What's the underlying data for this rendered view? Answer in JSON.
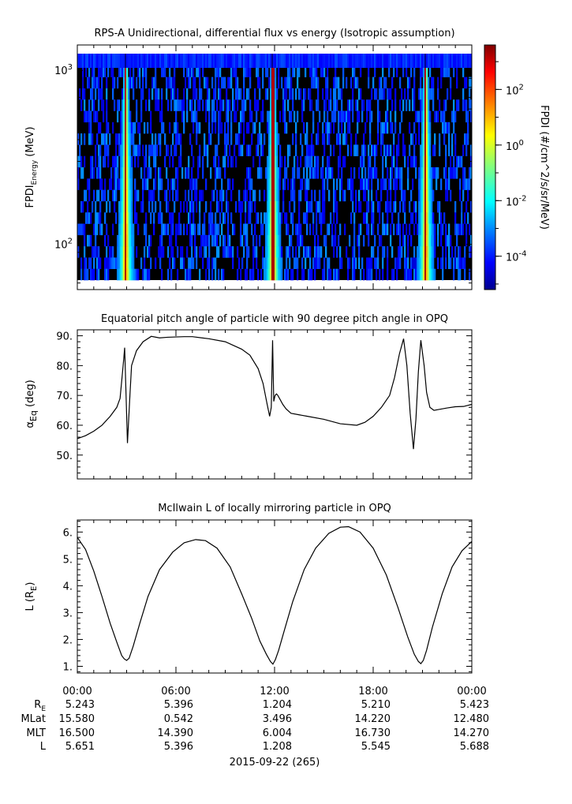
{
  "chart_data": [
    {
      "type": "heatmap",
      "title": "RPS-A Unidirectional, differential flux vs energy (Isotropic assumption)",
      "ylabel_main": "FPDI",
      "ylabel_sub": "Energy",
      "ylabel_unit": " (MeV)",
      "yscale": "log",
      "ylim": [
        55,
        1400
      ],
      "y_ticks": [
        {
          "value": 100,
          "base": "10",
          "exp": "2"
        },
        {
          "value": 1000,
          "base": "10",
          "exp": "3"
        }
      ],
      "xlim_hours": [
        0,
        24
      ],
      "colorbar": {
        "label": "FPDI (#/cm^2/s/sr/MeV)",
        "scale": "log",
        "range_exp": [
          -5.2,
          3.6
        ],
        "ticks": [
          {
            "exp": -4,
            "label": "-4"
          },
          {
            "exp": -2,
            "label": "-2"
          },
          {
            "exp": 0,
            "label": "0"
          },
          {
            "exp": 2,
            "label": "2"
          }
        ],
        "colors": [
          "#00008f",
          "#0000ff",
          "#0080ff",
          "#00ffff",
          "#80ff80",
          "#ffff00",
          "#ff8000",
          "#ff0000",
          "#800000"
        ]
      },
      "flux_peaks_hours": [
        2.95,
        11.9,
        21.2
      ],
      "background_color": "#000000"
    },
    {
      "type": "line",
      "title": "Equatorial pitch angle of particle with 90 degree pitch angle in OPQ",
      "ylabel_main": "α",
      "ylabel_sub": "Eq",
      "ylabel_unit": " (deg)",
      "ylim": [
        42,
        92
      ],
      "y_ticks": [
        "50.",
        "60.",
        "70.",
        "80.",
        "90."
      ],
      "y_tick_values": [
        50,
        60,
        70,
        80,
        90
      ],
      "x_hours": [
        0,
        0.5,
        1.0,
        1.5,
        2.0,
        2.4,
        2.6,
        2.72,
        2.82,
        2.88,
        2.95,
        3.05,
        3.2,
        3.3,
        3.6,
        4.0,
        4.5,
        5.0,
        5.5,
        6.0,
        6.5,
        7.0,
        8.0,
        9.0,
        10.0,
        10.5,
        11.0,
        11.3,
        11.55,
        11.7,
        11.8,
        11.88,
        11.95,
        12.03,
        12.12,
        12.2,
        12.35,
        12.5,
        12.7,
        13.0,
        13.5,
        14.0,
        15.0,
        16.0,
        17.0,
        17.5,
        18.0,
        18.5,
        19.0,
        19.3,
        19.6,
        19.85,
        20.05,
        20.25,
        20.45,
        20.6,
        20.75,
        20.9,
        21.1,
        21.25,
        21.45,
        21.7,
        22.0,
        22.5,
        23.0,
        23.5,
        24.0
      ],
      "values": [
        55.5,
        56.5,
        58.0,
        60.0,
        63.0,
        66.0,
        69.0,
        76.0,
        82.0,
        86.0,
        73.0,
        54.0,
        70.0,
        80.0,
        85.0,
        88.0,
        89.8,
        89.3,
        89.5,
        89.6,
        89.7,
        89.7,
        89.0,
        88.0,
        85.5,
        83.5,
        79.0,
        74.0,
        67.0,
        63.0,
        66.0,
        88.5,
        68.0,
        70.0,
        70.5,
        70.0,
        68.5,
        67.0,
        65.5,
        64.0,
        63.5,
        63.0,
        62.0,
        60.5,
        60.0,
        61.0,
        63.0,
        66.0,
        70.0,
        76.0,
        84.0,
        89.0,
        80.0,
        64.0,
        52.0,
        62.0,
        78.0,
        88.5,
        80.0,
        71.0,
        66.0,
        65.0,
        65.3,
        65.8,
        66.2,
        66.3,
        67.0
      ]
    },
    {
      "type": "line",
      "title": "McIlwain L of locally mirroring particle in OPQ",
      "ylabel_main": "L (R",
      "ylabel_sub": "E",
      "ylabel_unit": ")",
      "ylim": [
        0.75,
        6.45
      ],
      "y_ticks": [
        "1.",
        "2.",
        "3.",
        "4.",
        "5.",
        "6."
      ],
      "y_tick_values": [
        1,
        2,
        3,
        4,
        5,
        6
      ],
      "x_hours": [
        0,
        0.5,
        1.0,
        1.5,
        2.0,
        2.4,
        2.7,
        2.85,
        3.0,
        3.15,
        3.4,
        3.8,
        4.3,
        5.0,
        5.8,
        6.5,
        7.2,
        7.8,
        8.5,
        9.3,
        10.0,
        10.6,
        11.1,
        11.5,
        11.75,
        11.9,
        12.05,
        12.25,
        12.6,
        13.1,
        13.8,
        14.5,
        15.3,
        16.0,
        16.5,
        17.2,
        18.0,
        18.8,
        19.5,
        20.1,
        20.5,
        20.75,
        20.9,
        21.05,
        21.25,
        21.6,
        22.2,
        22.8,
        23.4,
        24.0
      ],
      "values": [
        5.8,
        5.35,
        4.55,
        3.6,
        2.6,
        1.9,
        1.4,
        1.28,
        1.22,
        1.3,
        1.75,
        2.6,
        3.6,
        4.6,
        5.25,
        5.6,
        5.72,
        5.68,
        5.4,
        4.7,
        3.7,
        2.8,
        1.95,
        1.45,
        1.18,
        1.08,
        1.25,
        1.6,
        2.35,
        3.4,
        4.6,
        5.4,
        5.95,
        6.18,
        6.2,
        6.0,
        5.4,
        4.4,
        3.2,
        2.1,
        1.45,
        1.18,
        1.1,
        1.22,
        1.6,
        2.45,
        3.7,
        4.7,
        5.3,
        5.65
      ]
    }
  ],
  "x_axis": {
    "tick_labels": [
      "00:00",
      "06:00",
      "12:00",
      "18:00",
      "00:00"
    ],
    "tick_hours": [
      0,
      6,
      12,
      18,
      24
    ],
    "date_label": "2015-09-22 (265)"
  },
  "ephemeris": {
    "row_labels": [
      {
        "main": "R",
        "sub": "E"
      },
      {
        "main": "MLat",
        "sub": ""
      },
      {
        "main": "MLT",
        "sub": ""
      },
      {
        "main": "L",
        "sub": ""
      }
    ],
    "values": [
      [
        "5.243",
        "5.396",
        "1.204",
        "5.210",
        "5.423"
      ],
      [
        "15.580",
        "0.542",
        "3.496",
        "14.220",
        "12.480"
      ],
      [
        "16.500",
        "14.390",
        "6.004",
        "16.730",
        "14.270"
      ],
      [
        "5.651",
        "5.396",
        "1.208",
        "5.545",
        "5.688"
      ]
    ]
  }
}
